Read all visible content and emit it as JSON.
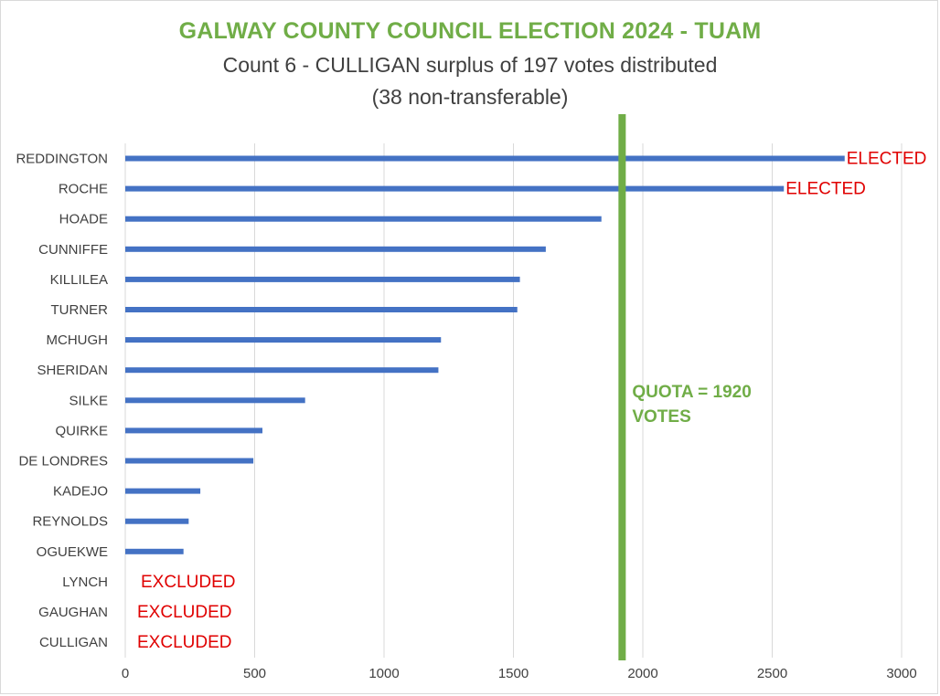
{
  "chart_data": {
    "type": "bar",
    "orientation": "horizontal",
    "title": "GALWAY COUNTY COUNCIL ELECTION 2024 - TUAM",
    "subtitle_line1": "Count 6 - CULLIGAN surplus of 197 votes distributed",
    "subtitle_line2": "(38 non-transferable)",
    "categories": [
      "REDDINGTON",
      "ROCHE",
      "HOADE",
      "CUNNIFFE",
      "KILLILEA",
      "TURNER",
      "MCHUGH",
      "SHERIDAN",
      "SILKE",
      "QUIRKE",
      "DE LONDRES",
      "KADEJO",
      "REYNOLDS",
      "OGUEKWE",
      "LYNCH",
      "GAUGHAN",
      "CULLIGAN"
    ],
    "values": [
      2780,
      2545,
      1840,
      1625,
      1525,
      1515,
      1220,
      1210,
      695,
      530,
      495,
      290,
      245,
      225,
      0,
      0,
      0
    ],
    "status": [
      "ELECTED",
      "ELECTED",
      "",
      "",
      "",
      "",
      "",
      "",
      "",
      "",
      "",
      "",
      "",
      "",
      "EXCLUDED",
      "EXCLUDED",
      "EXCLUDED"
    ],
    "xlim": [
      0,
      3000
    ],
    "xticks": [
      0,
      500,
      1000,
      1500,
      2000,
      2500,
      3000
    ],
    "grid": true,
    "bar_color": "#4472c4",
    "status_color": "#e00000",
    "quota": {
      "value": 1920,
      "label_line1": "QUOTA = 1920",
      "label_line2": "VOTES",
      "color": "#70ad47"
    }
  }
}
